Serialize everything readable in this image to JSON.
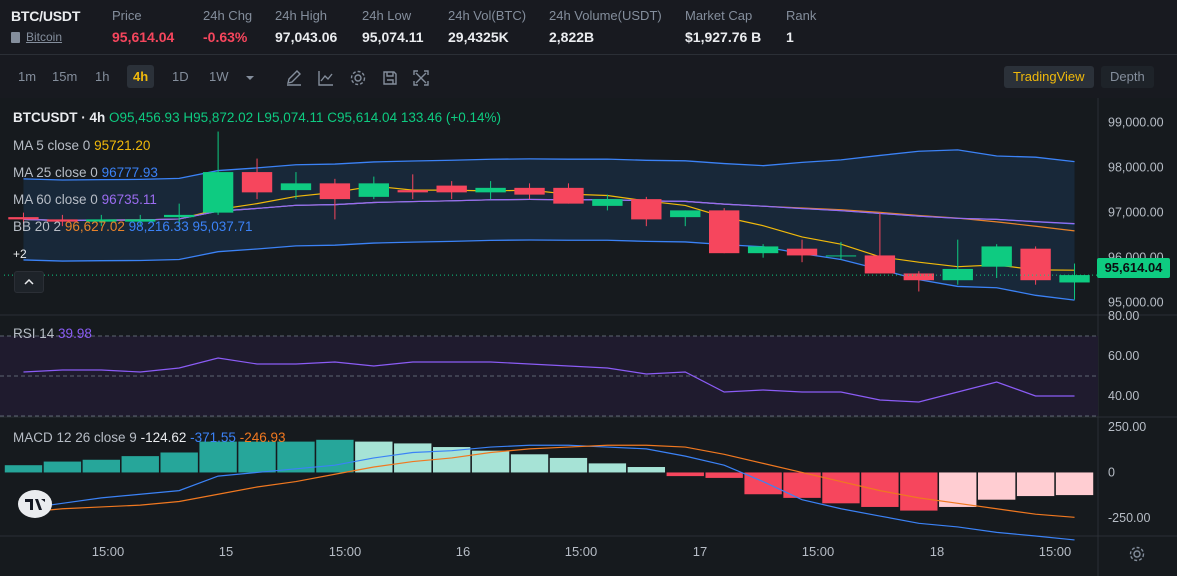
{
  "header": {
    "symbol": "BTC/USDT",
    "name": "Bitcoin",
    "stats": [
      {
        "label": "Price",
        "value": "95,614.04",
        "color": "#f6465d"
      },
      {
        "label": "24h Chg",
        "value": "-0.63%",
        "color": "#f6465d"
      },
      {
        "label": "24h High",
        "value": "97,043.06"
      },
      {
        "label": "24h Low",
        "value": "95,074.11"
      },
      {
        "label": "24h Vol(BTC)",
        "value": "29,4325K"
      },
      {
        "label": "24h Volume(USDT)",
        "value": "2,822B"
      },
      {
        "label": "Market Cap",
        "value": "$1,927.76 B"
      },
      {
        "label": "Rank",
        "value": "1"
      }
    ]
  },
  "toolbar": {
    "timeframes": [
      "1m",
      "15m",
      "1h",
      "4h",
      "1D",
      "1W"
    ],
    "active_timeframe": "4h",
    "icons": [
      "chevron-down-icon",
      "pencil-icon",
      "line-chart-icon",
      "gear-icon",
      "save-icon",
      "fullscreen-icon"
    ],
    "view_buttons": {
      "tradingview": "TradingView",
      "depth": "Depth"
    }
  },
  "legend": {
    "title": "BTCUSDT · 4h",
    "ohlc": {
      "o": "O95,456.93",
      "h": "H95,872.02",
      "l": "L95,074.11",
      "c": "C95,614.04",
      "chg": "133.46 (+0.14%)"
    },
    "ma5": {
      "label": "MA 5 close 0",
      "value": "95721.20"
    },
    "ma25": {
      "label": "MA 25 close 0",
      "value": "96777.93"
    },
    "ma60": {
      "label": "MA 60 close 0",
      "value": "96735.11"
    },
    "bb": {
      "label": "BB 20 2",
      "mid": "96,627.02",
      "upper": "98,216.33",
      "lower": "95,037.71"
    },
    "more": "+2",
    "rsi": {
      "label": "RSI 14",
      "value": "39.98"
    },
    "macd": {
      "label": "MACD 12 26 close 9",
      "hist": "-124.62",
      "macd": "-371.55",
      "signal": "-246.93"
    }
  },
  "colors": {
    "up": "#0ecb81",
    "down": "#f6465d",
    "ma5": "#f0b90b",
    "ma25": "#3b82f6",
    "ma60": "#9b6cf0",
    "bb_mid": "#e8822a",
    "rsi": "#8b5cf6",
    "macd": "#3b82f6",
    "signal": "#f07820"
  },
  "last_price_tag": "95,614.04",
  "chart_data": [
    {
      "type": "candlestick",
      "y_ticks": [
        "99,000.00",
        "98,000.00",
        "97,000.00",
        "96,000.00",
        "95,000.00"
      ],
      "ylim": [
        94750,
        99500
      ],
      "x_ticks": [
        "15:00",
        "15",
        "15:00",
        "16",
        "15:00",
        "17",
        "15:00",
        "18",
        "15:00"
      ],
      "candles": [
        {
          "o": 96900,
          "h": 97000,
          "l": 96750,
          "c": 96850
        },
        {
          "o": 96850,
          "h": 96950,
          "l": 96700,
          "c": 96800
        },
        {
          "o": 96800,
          "h": 96950,
          "l": 96700,
          "c": 96850
        },
        {
          "o": 96800,
          "h": 96950,
          "l": 96700,
          "c": 96850
        },
        {
          "o": 96900,
          "h": 97200,
          "l": 96700,
          "c": 96950
        },
        {
          "o": 97000,
          "h": 98800,
          "l": 96950,
          "c": 97900
        },
        {
          "o": 97900,
          "h": 98200,
          "l": 97300,
          "c": 97450
        },
        {
          "o": 97500,
          "h": 97900,
          "l": 97300,
          "c": 97650
        },
        {
          "o": 97650,
          "h": 97750,
          "l": 96850,
          "c": 97300
        },
        {
          "o": 97350,
          "h": 97800,
          "l": 97300,
          "c": 97650
        },
        {
          "o": 97500,
          "h": 97850,
          "l": 97300,
          "c": 97450
        },
        {
          "o": 97600,
          "h": 97700,
          "l": 97300,
          "c": 97450
        },
        {
          "o": 97450,
          "h": 97700,
          "l": 97300,
          "c": 97550
        },
        {
          "o": 97550,
          "h": 97650,
          "l": 97300,
          "c": 97400
        },
        {
          "o": 97550,
          "h": 97650,
          "l": 97200,
          "c": 97200
        },
        {
          "o": 97150,
          "h": 97400,
          "l": 97050,
          "c": 97300
        },
        {
          "o": 97300,
          "h": 97350,
          "l": 96700,
          "c": 96850
        },
        {
          "o": 96900,
          "h": 97050,
          "l": 96700,
          "c": 97050
        },
        {
          "o": 97050,
          "h": 97100,
          "l": 96100,
          "c": 96100
        },
        {
          "o": 96100,
          "h": 96300,
          "l": 96000,
          "c": 96250
        },
        {
          "o": 96200,
          "h": 96400,
          "l": 95900,
          "c": 96050
        },
        {
          "o": 96050,
          "h": 96350,
          "l": 95950,
          "c": 96050
        },
        {
          "o": 96050,
          "h": 97000,
          "l": 95650,
          "c": 95650
        },
        {
          "o": 95650,
          "h": 95700,
          "l": 95250,
          "c": 95500
        },
        {
          "o": 95500,
          "h": 96400,
          "l": 95400,
          "c": 95750
        },
        {
          "o": 95800,
          "h": 96300,
          "l": 95550,
          "c": 96250
        },
        {
          "o": 96200,
          "h": 96250,
          "l": 95400,
          "c": 95500
        },
        {
          "o": 95450,
          "h": 95870,
          "l": 95070,
          "c": 95614
        }
      ]
    },
    {
      "type": "line",
      "name": "RSI 14",
      "y_ticks": [
        "80.00",
        "60.00",
        "40.00"
      ],
      "ylim": [
        30,
        80
      ],
      "values": [
        52,
        53,
        53,
        52,
        54,
        59,
        56,
        56,
        57,
        55,
        57,
        57,
        57,
        56,
        55,
        54,
        51,
        52,
        42,
        43,
        42,
        42,
        38,
        37,
        42,
        47,
        40,
        40
      ]
    },
    {
      "type": "bar",
      "name": "MACD 12 26 close 9",
      "y_ticks": [
        "250.00",
        "0",
        "-250.00"
      ],
      "ylim": [
        -350,
        300
      ],
      "histogram": [
        40,
        60,
        70,
        90,
        110,
        170,
        170,
        170,
        180,
        170,
        160,
        140,
        120,
        100,
        80,
        50,
        30,
        -20,
        -30,
        -120,
        -140,
        -170,
        -190,
        -210,
        -190,
        -150,
        -130,
        -124.62
      ],
      "macd": [
        -200,
        -170,
        -140,
        -120,
        -100,
        -20,
        0,
        20,
        40,
        80,
        110,
        120,
        140,
        150,
        150,
        140,
        130,
        90,
        40,
        -50,
        -150,
        -200,
        -240,
        -280,
        -300,
        -330,
        -350,
        -371.55
      ],
      "signal": [
        -220,
        -200,
        -190,
        -180,
        -160,
        -120,
        -80,
        -50,
        -10,
        30,
        60,
        80,
        110,
        130,
        140,
        150,
        150,
        140,
        100,
        50,
        0,
        -50,
        -100,
        -140,
        -170,
        -200,
        -230,
        -246.93
      ]
    }
  ]
}
